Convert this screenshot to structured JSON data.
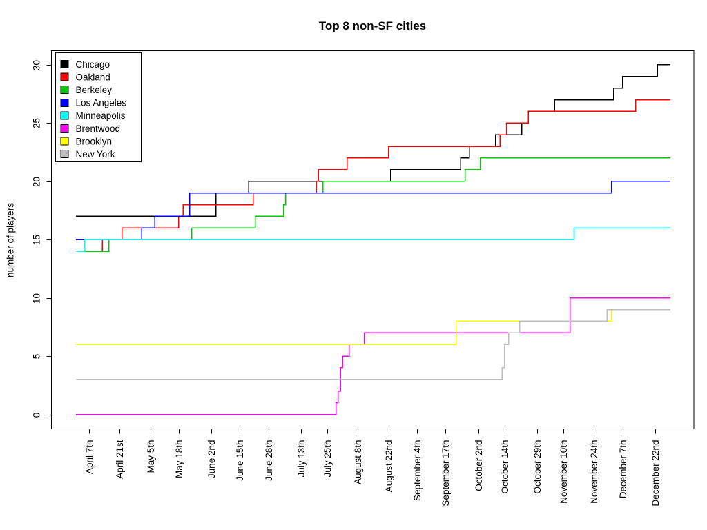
{
  "chart_data": {
    "type": "line",
    "subtype": "step",
    "title": "Top 8 non-SF cities",
    "xlabel": "",
    "ylabel": "number of players",
    "ylim": [
      0,
      30
    ],
    "y_ticks": [
      0,
      5,
      10,
      15,
      20,
      25,
      30
    ],
    "grid": false,
    "legend_position": "top-left",
    "x_day_range": [
      0,
      272
    ],
    "x_ticks": [
      {
        "label": "April 7th",
        "day": 6
      },
      {
        "label": "April 21st",
        "day": 20
      },
      {
        "label": "May 5th",
        "day": 34
      },
      {
        "label": "May 18th",
        "day": 47
      },
      {
        "label": "June 2nd",
        "day": 62
      },
      {
        "label": "June 15th",
        "day": 75
      },
      {
        "label": "June 28th",
        "day": 88
      },
      {
        "label": "July 13th",
        "day": 103
      },
      {
        "label": "July 25th",
        "day": 115
      },
      {
        "label": "August 8th",
        "day": 129
      },
      {
        "label": "August 22nd",
        "day": 143
      },
      {
        "label": "September 4th",
        "day": 156
      },
      {
        "label": "September 17th",
        "day": 169
      },
      {
        "label": "October 2nd",
        "day": 184
      },
      {
        "label": "October 14th",
        "day": 196
      },
      {
        "label": "October 29th",
        "day": 211
      },
      {
        "label": "November 10th",
        "day": 223
      },
      {
        "label": "November 24th",
        "day": 237
      },
      {
        "label": "December 7th",
        "day": 250
      },
      {
        "label": "December 22nd",
        "day": 265
      }
    ],
    "series": [
      {
        "name": "Chicago",
        "color": "#000000",
        "start": {
          "day": 0,
          "value": 17
        },
        "steps": [
          {
            "day": 64,
            "value": 19
          },
          {
            "day": 79,
            "value": 20
          },
          {
            "day": 144,
            "value": 21
          },
          {
            "day": 176,
            "value": 22
          },
          {
            "day": 180,
            "value": 23
          },
          {
            "day": 192,
            "value": 24
          },
          {
            "day": 204,
            "value": 25
          },
          {
            "day": 207,
            "value": 26
          },
          {
            "day": 219,
            "value": 27
          },
          {
            "day": 246,
            "value": 28
          },
          {
            "day": 250,
            "value": 29
          },
          {
            "day": 266,
            "value": 30
          }
        ],
        "end_value": 30
      },
      {
        "name": "Oakland",
        "color": "#FF0000",
        "start": {
          "day": 0,
          "value": 14
        },
        "steps": [
          {
            "day": 12,
            "value": 15
          },
          {
            "day": 21,
            "value": 16
          },
          {
            "day": 47,
            "value": 17
          },
          {
            "day": 49,
            "value": 18
          },
          {
            "day": 81,
            "value": 19
          },
          {
            "day": 110,
            "value": 20
          },
          {
            "day": 111,
            "value": 21
          },
          {
            "day": 124,
            "value": 22
          },
          {
            "day": 143,
            "value": 23
          },
          {
            "day": 194,
            "value": 24
          },
          {
            "day": 197,
            "value": 25
          },
          {
            "day": 207,
            "value": 26
          },
          {
            "day": 256,
            "value": 27
          }
        ],
        "end_value": 27
      },
      {
        "name": "Berkeley",
        "color": "#00CD00",
        "start": {
          "day": 0,
          "value": 14
        },
        "steps": [
          {
            "day": 15,
            "value": 15
          },
          {
            "day": 53,
            "value": 16
          },
          {
            "day": 82,
            "value": 17
          },
          {
            "day": 95,
            "value": 18
          },
          {
            "day": 96,
            "value": 19
          },
          {
            "day": 113,
            "value": 20
          },
          {
            "day": 178,
            "value": 21
          },
          {
            "day": 185,
            "value": 22
          }
        ],
        "end_value": 22
      },
      {
        "name": "Los Angeles",
        "color": "#0000FF",
        "start": {
          "day": 0,
          "value": 15
        },
        "steps": [
          {
            "day": 30,
            "value": 16
          },
          {
            "day": 36,
            "value": 17
          },
          {
            "day": 52,
            "value": 19
          },
          {
            "day": 245,
            "value": 20
          }
        ],
        "end_value": 20
      },
      {
        "name": "Minneapolis",
        "color": "#00FFFF",
        "start": {
          "day": 0,
          "value": 14
        },
        "steps": [
          {
            "day": 4,
            "value": 15
          },
          {
            "day": 228,
            "value": 16
          }
        ],
        "end_value": 16
      },
      {
        "name": "Brentwood",
        "color": "#FF00FF",
        "start": {
          "day": 0,
          "value": 0
        },
        "steps": [
          {
            "day": 119,
            "value": 1
          },
          {
            "day": 120,
            "value": 2
          },
          {
            "day": 121,
            "value": 4
          },
          {
            "day": 122,
            "value": 5
          },
          {
            "day": 125,
            "value": 6
          },
          {
            "day": 132,
            "value": 7
          },
          {
            "day": 226,
            "value": 10
          }
        ],
        "end_value": 10
      },
      {
        "name": "Brooklyn",
        "color": "#FFFF00",
        "start": {
          "day": 0,
          "value": 6
        },
        "steps": [
          {
            "day": 174,
            "value": 8
          },
          {
            "day": 245,
            "value": 9
          }
        ],
        "end_value": 9
      },
      {
        "name": "New York",
        "color": "#BEBEBE",
        "start": {
          "day": 0,
          "value": 3
        },
        "steps": [
          {
            "day": 195,
            "value": 4
          },
          {
            "day": 196,
            "value": 6
          },
          {
            "day": 198,
            "value": 7
          },
          {
            "day": 203,
            "value": 8
          },
          {
            "day": 243,
            "value": 9
          }
        ],
        "end_value": 9
      }
    ]
  }
}
